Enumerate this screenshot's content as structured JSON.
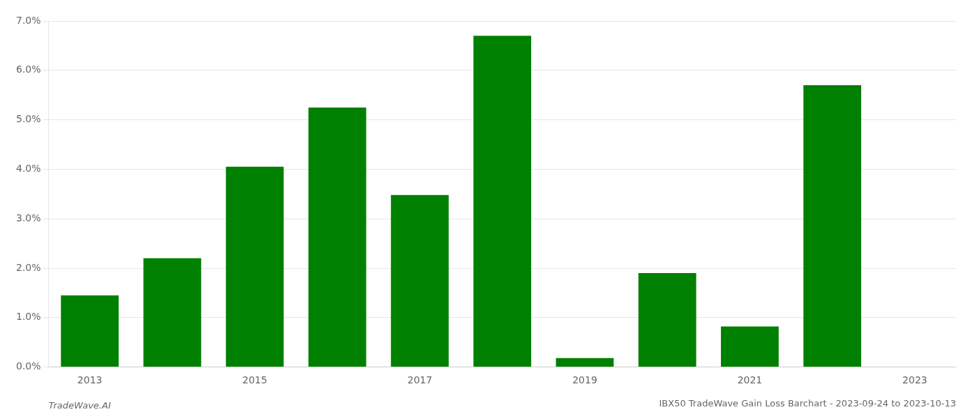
{
  "chart_data": {
    "type": "bar",
    "title": "IBX50 TradeWave Gain Loss Barchart - 2023-09-24 to 2023-10-13",
    "annotations": [
      "TradeWave.AI"
    ],
    "categories": [
      "2013",
      null,
      "2015",
      null,
      "2017",
      null,
      "2019",
      null,
      "2021",
      null,
      "2023"
    ],
    "values": [
      0.0145,
      0.022,
      0.0405,
      0.0525,
      0.0348,
      0.067,
      0.0018,
      0.019,
      0.0082,
      0.057,
      0.0
    ],
    "color": "#008000",
    "ylim": [
      0.0,
      0.07
    ],
    "yticks": [
      {
        "value": 0.0,
        "label": "0.0%"
      },
      {
        "value": 0.01,
        "label": "1.0%"
      },
      {
        "value": 0.02,
        "label": "2.0%"
      },
      {
        "value": 0.03,
        "label": "3.0%"
      },
      {
        "value": 0.04,
        "label": "4.0%"
      },
      {
        "value": 0.05,
        "label": "5.0%"
      },
      {
        "value": 0.06,
        "label": "6.0%"
      },
      {
        "value": 0.07,
        "label": "7.0%"
      }
    ],
    "grid": true
  }
}
